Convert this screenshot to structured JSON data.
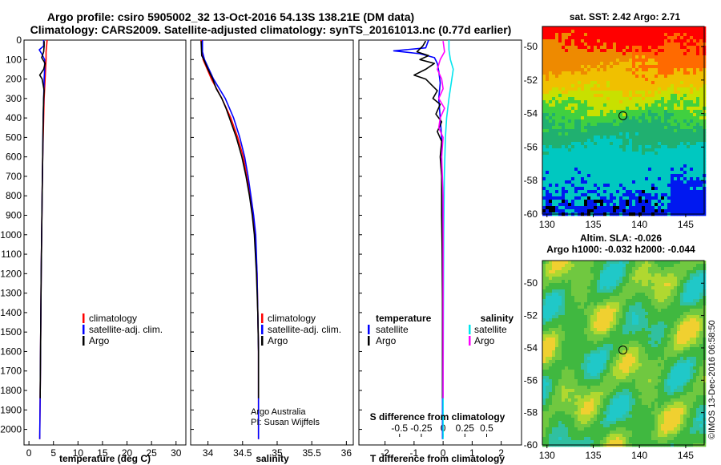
{
  "header": {
    "title_line1": "Argo profile: csiro 5905002_32 13-Oct-2016 54.13S 138.21E (DM data)",
    "title_line2": "Climatology: CARS2009. Satellite-adjusted climatology: synTS_20161013.nc (0.77d earlier)"
  },
  "colors": {
    "climatology": "#ff0000",
    "satellite": "#0000ff",
    "argo": "#000000",
    "sal_satellite": "#00e5ee",
    "sal_argo": "#ff00ff"
  },
  "chart_data": [
    {
      "type": "line",
      "id": "temperature",
      "xlabel": "temperature (deg C)",
      "ylabel": "",
      "xlim": [
        -1,
        32
      ],
      "ylim": [
        2080,
        0
      ],
      "xticks": [
        0,
        5,
        10,
        15,
        20,
        25,
        30
      ],
      "xtick_labels": [
        "0",
        "5",
        "10",
        "15",
        "20",
        "25",
        "30"
      ],
      "yticks": [
        0,
        100,
        200,
        300,
        400,
        500,
        600,
        700,
        800,
        900,
        1000,
        1100,
        1200,
        1300,
        1400,
        1500,
        1600,
        1700,
        1800,
        1900,
        2000
      ],
      "ytick_labels": [
        "0",
        "100",
        "200",
        "300",
        "400",
        "500",
        "600",
        "700",
        "800",
        "900",
        "1000",
        "1100",
        "1200",
        "1300",
        "1400",
        "1500",
        "1600",
        "1700",
        "1800",
        "1900",
        "2000"
      ],
      "legend": [
        "climatology",
        "satellite-adj. clim.",
        "Argo"
      ],
      "series": [
        {
          "name": "climatology",
          "color": "#ff0000",
          "depth": [
            0,
            30,
            60,
            100,
            150,
            200,
            250,
            300,
            400,
            600,
            800,
            1000,
            1200,
            1500,
            1800,
            2050
          ],
          "values": [
            3.7,
            3.6,
            3.5,
            3.5,
            3.4,
            3.3,
            3.2,
            3.1,
            3.0,
            2.8,
            2.7,
            2.6,
            2.5,
            2.4,
            2.3,
            2.2
          ]
        },
        {
          "name": "satellite-adj. clim.",
          "color": "#0000ff",
          "depth": [
            0,
            30,
            50,
            70,
            100,
            150,
            200,
            300,
            400,
            600,
            800,
            1000,
            1200,
            1500,
            1800,
            2050
          ],
          "values": [
            3.0,
            3.0,
            2.1,
            2.6,
            3.2,
            3.2,
            3.1,
            3.0,
            2.9,
            2.8,
            2.7,
            2.6,
            2.5,
            2.4,
            2.3,
            2.2
          ]
        },
        {
          "name": "Argo",
          "color": "#000000",
          "depth": [
            5,
            30,
            60,
            90,
            120,
            150,
            180,
            200,
            230,
            260,
            300,
            400,
            600,
            800,
            1000,
            1200,
            1500,
            1800,
            1840
          ],
          "values": [
            3.1,
            3.1,
            3.0,
            2.6,
            3.3,
            3.0,
            2.2,
            2.7,
            2.9,
            3.1,
            3.0,
            2.9,
            2.8,
            2.7,
            2.6,
            2.5,
            2.4,
            2.3,
            2.3
          ]
        }
      ]
    },
    {
      "type": "line",
      "id": "salinity",
      "xlabel": "salinity",
      "xlim": [
        33.75,
        36.1
      ],
      "ylim": [
        2080,
        0
      ],
      "xticks": [
        34,
        34.5,
        35,
        35.5,
        36
      ],
      "xtick_labels": [
        "34",
        "34.5",
        "35",
        "35.5",
        "36"
      ],
      "legend": [
        "climatology",
        "satellite-adj. clim.",
        "Argo"
      ],
      "annotations": [
        "Argo Australia",
        "PI: Susan Wijffels"
      ],
      "series": [
        {
          "name": "climatology",
          "color": "#ff0000",
          "depth": [
            0,
            100,
            200,
            300,
            400,
            500,
            600,
            700,
            800,
            900,
            1000,
            1200,
            1400,
            1600,
            1800,
            2050
          ],
          "values": [
            33.9,
            33.93,
            34.05,
            34.2,
            34.33,
            34.43,
            34.51,
            34.56,
            34.61,
            34.65,
            34.68,
            34.71,
            34.72,
            34.73,
            34.73,
            34.73
          ]
        },
        {
          "name": "satellite-adj. clim.",
          "color": "#0000ff",
          "depth": [
            0,
            60,
            100,
            200,
            300,
            400,
            500,
            600,
            700,
            800,
            900,
            1000,
            1200,
            1400,
            1600,
            1800,
            2050
          ],
          "values": [
            33.92,
            33.92,
            33.95,
            34.08,
            34.25,
            34.37,
            34.46,
            34.53,
            34.58,
            34.62,
            34.66,
            34.69,
            34.71,
            34.72,
            34.73,
            34.73,
            34.73
          ]
        },
        {
          "name": "Argo",
          "color": "#000000",
          "depth": [
            5,
            80,
            100,
            150,
            200,
            250,
            300,
            350,
            400,
            500,
            600,
            700,
            800,
            900,
            1000,
            1200,
            1400,
            1600,
            1840
          ],
          "values": [
            33.9,
            33.91,
            33.94,
            34.0,
            34.07,
            34.12,
            34.2,
            34.26,
            34.31,
            34.41,
            34.49,
            34.55,
            34.6,
            34.64,
            34.67,
            34.7,
            34.72,
            34.73,
            34.73
          ]
        }
      ]
    },
    {
      "type": "line",
      "id": "difference",
      "xlabel": "T difference from climatology",
      "xlabel_top": "S difference from climatology",
      "xlim": [
        -2.9,
        2.7
      ],
      "ylim": [
        2080,
        0
      ],
      "xticks": [
        -2,
        -1,
        0,
        1,
        2
      ],
      "xtick_labels": [
        "-2",
        "-1",
        "0",
        "1",
        "2"
      ],
      "sticks": [
        -1.5,
        -0.75,
        0,
        0.75,
        1.5
      ],
      "stick_labels": [
        "-0.5",
        "-0.25",
        "0",
        "0.25",
        "0.5"
      ],
      "legend_left_title": "temperature",
      "legend_right_title": "salinity",
      "legend_left": [
        "satellite",
        "Argo"
      ],
      "legend_right": [
        "satellite",
        "Argo"
      ],
      "series": [
        {
          "name": "T satellite",
          "color": "#0000ff",
          "depth": [
            0,
            40,
            55,
            70,
            90,
            120,
            160,
            220,
            300,
            400,
            500,
            700,
            1000,
            1400,
            1800,
            2050
          ],
          "values": [
            -0.5,
            -0.6,
            -1.7,
            -0.8,
            -0.3,
            -0.2,
            -0.15,
            -0.1,
            -0.15,
            -0.1,
            -0.05,
            -0.05,
            -0.03,
            -0.02,
            -0.02,
            -0.02
          ]
        },
        {
          "name": "T Argo",
          "color": "#000000",
          "depth": [
            5,
            30,
            60,
            80,
            100,
            120,
            150,
            180,
            200,
            230,
            260,
            300,
            330,
            380,
            420,
            470,
            520,
            600,
            700,
            900,
            1100,
            1400,
            1700,
            1840
          ],
          "values": [
            -0.6,
            -0.7,
            -0.9,
            -0.5,
            -0.8,
            -0.3,
            -0.6,
            -1.0,
            -0.6,
            -0.4,
            -0.2,
            -0.35,
            -0.1,
            -0.25,
            -0.05,
            -0.2,
            -0.05,
            -0.1,
            -0.05,
            -0.05,
            -0.03,
            -0.02,
            -0.02,
            -0.02
          ]
        },
        {
          "name": "S satellite",
          "color": "#00e5ee",
          "depth": [
            0,
            50,
            100,
            150,
            200,
            300,
            400,
            500,
            700,
            1000,
            1400,
            1800,
            2050
          ],
          "values": [
            0.2,
            0.2,
            0.25,
            0.35,
            0.3,
            0.2,
            0.12,
            0.08,
            0.04,
            0.02,
            0.01,
            0.0,
            0.0
          ]
        },
        {
          "name": "S Argo",
          "color": "#ff00ff",
          "depth": [
            5,
            60,
            100,
            150,
            200,
            250,
            300,
            350,
            400,
            450,
            500,
            600,
            800,
            1000,
            1400,
            1840
          ],
          "values": [
            0.0,
            0.05,
            -0.1,
            -0.2,
            -0.05,
            0.0,
            -0.15,
            0.05,
            -0.1,
            -0.15,
            0.0,
            -0.05,
            0.0,
            0.0,
            0.0,
            0.0
          ]
        }
      ]
    },
    {
      "type": "heatmap",
      "id": "sst-map",
      "title": "sat. SST: 2.42 Argo: 2.71",
      "xlim": [
        129.5,
        147
      ],
      "ylim": [
        -60,
        -48.8
      ],
      "xticks": [
        130,
        135,
        140,
        145
      ],
      "xtick_labels": [
        "130",
        "135",
        "140",
        "145"
      ],
      "yticks": [
        -50,
        -52,
        -54,
        -56,
        -58,
        -60
      ],
      "ytick_labels": [
        "-50",
        "-52",
        "-54",
        "-56",
        "-58",
        "-60"
      ],
      "marker": {
        "lon": 138.21,
        "lat": -54.13
      }
    },
    {
      "type": "heatmap",
      "id": "sla-map",
      "title": "Altim. SLA: -0.026",
      "subtitle": "Argo h1000: -0.032 h2000: -0.044",
      "xlim": [
        129.5,
        147
      ],
      "ylim": [
        -60,
        -48.6
      ],
      "xticks": [
        130,
        135,
        140,
        145
      ],
      "xtick_labels": [
        "130",
        "135",
        "140",
        "145"
      ],
      "yticks": [
        -50,
        -52,
        -54,
        -56,
        -58,
        -60
      ],
      "ytick_labels": [
        "-50",
        "-52",
        "-54",
        "-56",
        "-58",
        "-60"
      ],
      "marker": {
        "lon": 138.21,
        "lat": -54.13
      }
    }
  ],
  "footer": {
    "stamp": "©IMOS 13-Dec-2016 06:58:50"
  }
}
